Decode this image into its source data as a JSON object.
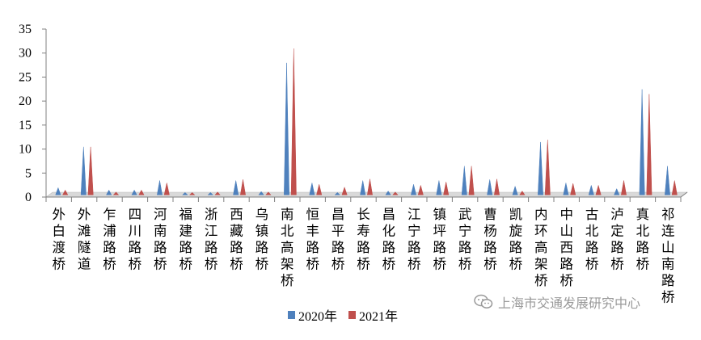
{
  "chart_data": {
    "type": "bar",
    "title": "",
    "xlabel": "",
    "ylabel": "",
    "ylim": [
      0,
      35
    ],
    "yticks": [
      0,
      5,
      10,
      15,
      20,
      25,
      30,
      35
    ],
    "grid": false,
    "legend_position": "bottom",
    "categories": [
      "外白渡桥",
      "外滩隧道",
      "乍浦路桥",
      "四川路桥",
      "河南路桥",
      "福建路桥",
      "浙江路桥",
      "西藏路桥",
      "乌镇路桥",
      "南北高架桥",
      "恒丰路桥",
      "昌平路桥",
      "长寿路桥",
      "昌化路桥",
      "江宁路桥",
      "镇坪路桥",
      "武宁路桥",
      "曹杨路桥",
      "凯旋路桥",
      "内环高架桥",
      "中山西路桥",
      "古北路桥",
      "泸定路桥",
      "真北路桥",
      "祁连山南路桥"
    ],
    "series": [
      {
        "name": "2020年",
        "color": "#4f81bd",
        "values": [
          1.5,
          10,
          1,
          1,
          3,
          0.5,
          0.5,
          3,
          0.7,
          27.5,
          2.5,
          0.5,
          3,
          0.8,
          2.2,
          3,
          6,
          3.2,
          1.8,
          11,
          2.5,
          2,
          1.3,
          22,
          6
        ]
      },
      {
        "name": "2021年",
        "color": "#c0504d",
        "values": [
          1,
          10,
          0.6,
          1,
          2.5,
          0.5,
          0.6,
          3.2,
          0.6,
          30.5,
          2.2,
          1.6,
          3.3,
          0.6,
          2,
          2.7,
          6,
          3.3,
          0.8,
          11.5,
          2.4,
          2,
          3,
          21,
          3
        ]
      }
    ]
  },
  "legend": {
    "items": [
      "2020年",
      "2021年"
    ]
  },
  "watermark": {
    "text": "上海市交通发展研究中心"
  }
}
